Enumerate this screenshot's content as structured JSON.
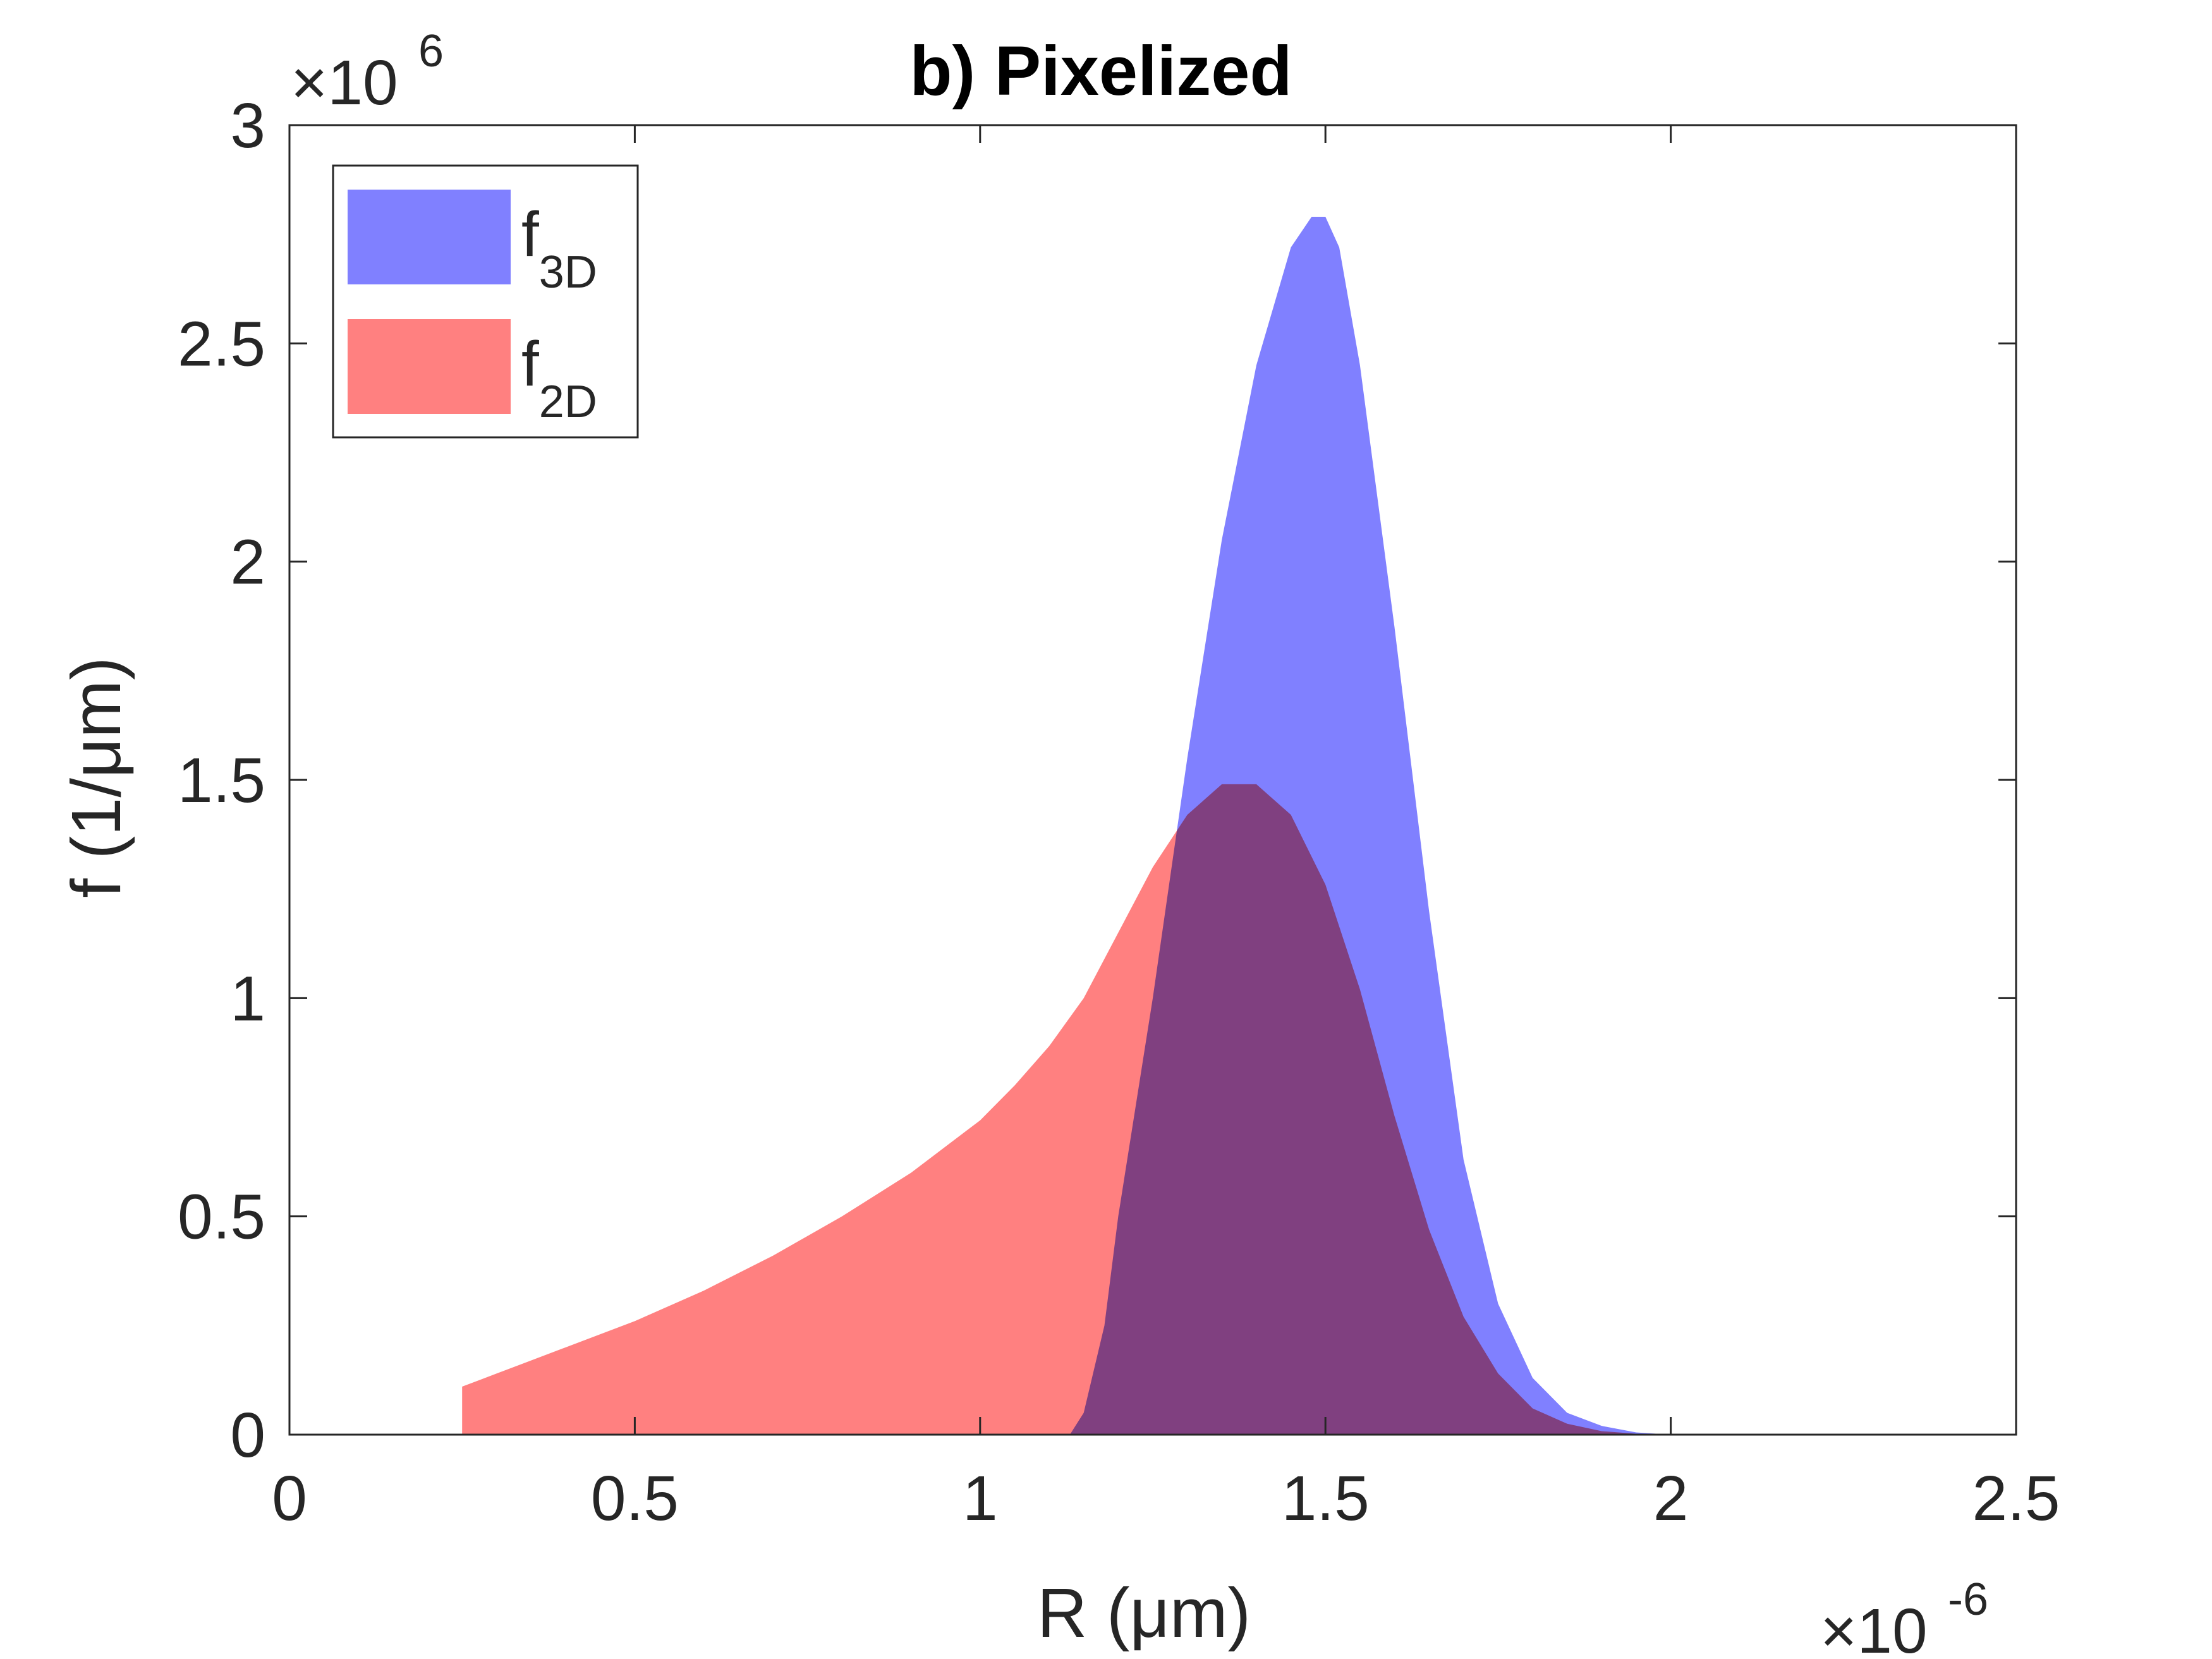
{
  "chart_data": {
    "type": "area",
    "title": "b) Pixelized",
    "xlabel": "R (μm)",
    "ylabel": "f (1/μm)",
    "x_multiplier": {
      "base": "×10",
      "exp": "-6"
    },
    "y_multiplier": {
      "base": "×10",
      "exp": "6"
    },
    "xlim": [
      0,
      2.5e-06
    ],
    "ylim": [
      0,
      3000000.0
    ],
    "xticks": [
      0,
      5e-07,
      1e-06,
      1.5e-06,
      2e-06,
      2.5e-06
    ],
    "xtick_labels": [
      "0",
      "0.5",
      "1",
      "1.5",
      "2",
      "2.5"
    ],
    "yticks": [
      0,
      500000.0,
      1000000.0,
      1500000.0,
      2000000.0,
      2500000.0,
      3000000.0
    ],
    "ytick_labels": [
      "0",
      "0.5",
      "1",
      "1.5",
      "2",
      "2.5",
      "3"
    ],
    "grid": false,
    "legend_position": "top-left",
    "series": [
      {
        "name_base": "f",
        "name_sub": "3D",
        "color": "#8080ff",
        "x": [
          1.13e-06,
          1.15e-06,
          1.18e-06,
          1.2e-06,
          1.25e-06,
          1.3e-06,
          1.35e-06,
          1.4e-06,
          1.45e-06,
          1.48e-06,
          1.5e-06,
          1.52e-06,
          1.55e-06,
          1.6e-06,
          1.65e-06,
          1.7e-06,
          1.75e-06,
          1.8e-06,
          1.85e-06,
          1.9e-06,
          1.95e-06,
          2e-06
        ],
        "y": [
          0,
          50000.0,
          250000.0,
          500000.0,
          1000000.0,
          1550000.0,
          2050000.0,
          2450000.0,
          2720000.0,
          2790000.0,
          2790000.0,
          2720000.0,
          2450000.0,
          1850000.0,
          1200000.0,
          630000.0,
          300000.0,
          130000.0,
          50000.0,
          20000.0,
          5000.0,
          0
        ]
      },
      {
        "name_base": "f",
        "name_sub": "2D",
        "color": "#ff8080",
        "x": [
          2.5e-07,
          2.5e-07,
          3e-07,
          4e-07,
          5e-07,
          6e-07,
          7e-07,
          8e-07,
          9e-07,
          1e-06,
          1.05e-06,
          1.1e-06,
          1.15e-06,
          1.2e-06,
          1.25e-06,
          1.3e-06,
          1.35e-06,
          1.4e-06,
          1.45e-06,
          1.5e-06,
          1.55e-06,
          1.6e-06,
          1.65e-06,
          1.7e-06,
          1.75e-06,
          1.8e-06,
          1.85e-06,
          1.9e-06,
          1.95e-06,
          2e-06
        ],
        "y": [
          0,
          110000.0,
          140000.0,
          200000.0,
          260000.0,
          330000.0,
          410000.0,
          500000.0,
          600000.0,
          720000.0,
          800000.0,
          890000.0,
          1000000.0,
          1150000.0,
          1300000.0,
          1420000.0,
          1490000.0,
          1490000.0,
          1420000.0,
          1260000.0,
          1020000.0,
          730000.0,
          470000.0,
          270000.0,
          140000.0,
          60000.0,
          25000.0,
          8000.0,
          2000.0,
          0
        ]
      }
    ],
    "overlap_color": "#bf4080"
  }
}
